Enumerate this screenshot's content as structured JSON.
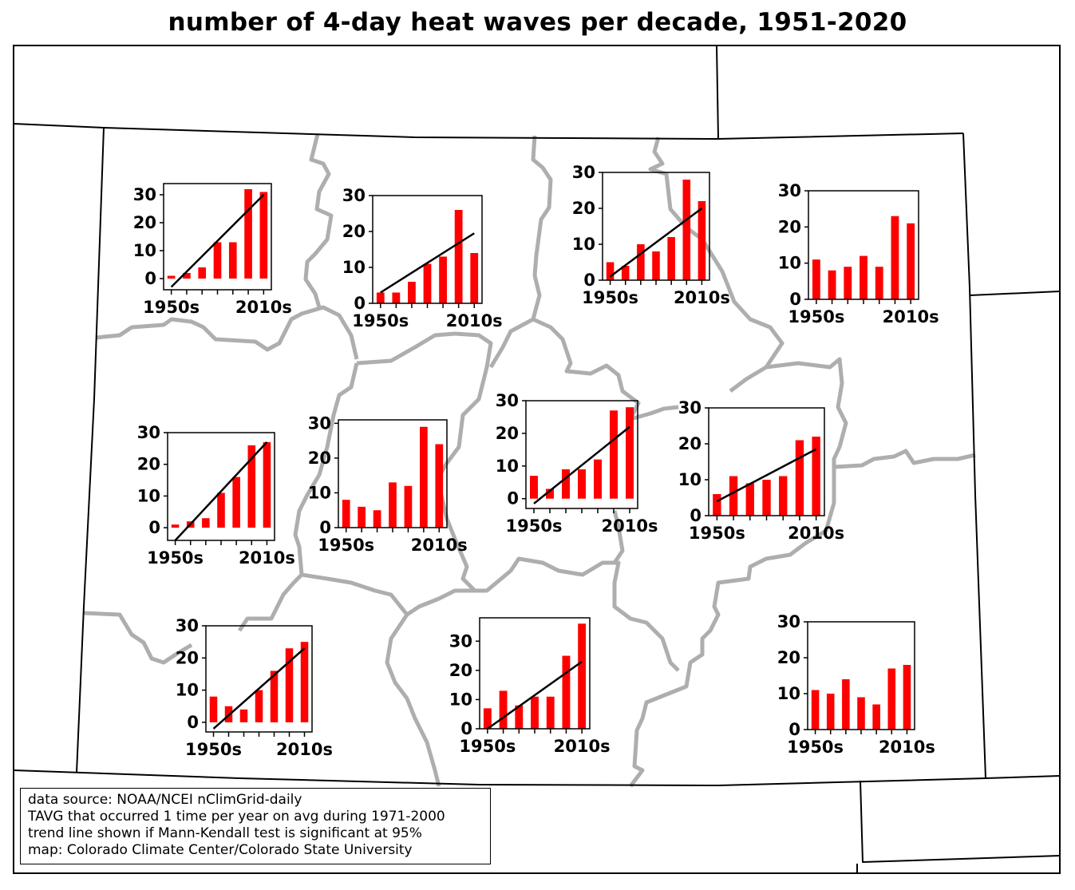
{
  "title": "number of 4-day heat waves per decade, 1951-2020",
  "legend_lines": [
    "data source: NOAA/NCEI nClimGrid-daily",
    "TAVG that occurred 1 time per year on avg during 1971-2000",
    "trend line shown if Mann-Kendall test is significant at 95%",
    "map: Colorado Climate Center/Colorado State University"
  ],
  "colors": {
    "bar": "#ff0000",
    "trend": "#000000",
    "region_border": "#aaaaaa",
    "state_border": "#000000"
  },
  "chart_data": [
    {
      "type": "bar",
      "categories": [
        "1950s",
        "1960s",
        "1970s",
        "1980s",
        "1990s",
        "2000s",
        "2010s"
      ],
      "tick_labels": [
        "1950s",
        "2010s"
      ],
      "values": [
        1,
        2,
        4,
        13,
        13,
        32,
        31
      ],
      "ylim": [
        -4,
        34
      ],
      "yticks": [
        0,
        10,
        20,
        30
      ],
      "trend": [
        -3,
        30
      ]
    },
    {
      "type": "bar",
      "categories": [
        "1950s",
        "1960s",
        "1970s",
        "1980s",
        "1990s",
        "2000s",
        "2010s"
      ],
      "tick_labels": [
        "1950s",
        "2010s"
      ],
      "values": [
        3,
        3,
        6,
        11,
        13,
        26,
        14
      ],
      "ylim": [
        0,
        30
      ],
      "yticks": [
        0,
        10,
        20,
        30
      ],
      "trend": [
        3,
        19.5
      ]
    },
    {
      "type": "bar",
      "categories": [
        "1950s",
        "1960s",
        "1970s",
        "1980s",
        "1990s",
        "2000s",
        "2010s"
      ],
      "tick_labels": [
        "1950s",
        "2010s"
      ],
      "values": [
        5,
        4,
        10,
        8,
        12,
        28,
        22
      ],
      "ylim": [
        0,
        30
      ],
      "yticks": [
        0,
        10,
        20,
        30
      ],
      "trend": [
        1,
        20
      ]
    },
    {
      "type": "bar",
      "categories": [
        "1950s",
        "1960s",
        "1970s",
        "1980s",
        "1990s",
        "2000s",
        "2010s"
      ],
      "tick_labels": [
        "1950s",
        "2010s"
      ],
      "values": [
        11,
        8,
        9,
        12,
        9,
        23,
        21
      ],
      "ylim": [
        0,
        30
      ],
      "yticks": [
        0,
        10,
        20,
        30
      ],
      "trend": null
    },
    {
      "type": "bar",
      "categories": [
        "1950s",
        "1960s",
        "1970s",
        "1980s",
        "1990s",
        "2000s",
        "2010s"
      ],
      "tick_labels": [
        "1950s",
        "2010s"
      ],
      "values": [
        1,
        2,
        3,
        11,
        16,
        26,
        27
      ],
      "ylim": [
        -4,
        30
      ],
      "yticks": [
        0,
        10,
        20,
        30
      ],
      "trend": [
        -4,
        27
      ]
    },
    {
      "type": "bar",
      "categories": [
        "1950s",
        "1960s",
        "1970s",
        "1980s",
        "1990s",
        "2000s",
        "2010s"
      ],
      "tick_labels": [
        "1950s",
        "2010s"
      ],
      "values": [
        8,
        6,
        5,
        13,
        12,
        29,
        24
      ],
      "ylim": [
        0,
        31
      ],
      "yticks": [
        0,
        10,
        20,
        30
      ],
      "trend": null
    },
    {
      "type": "bar",
      "categories": [
        "1950s",
        "1960s",
        "1970s",
        "1980s",
        "1990s",
        "2000s",
        "2010s"
      ],
      "tick_labels": [
        "1950s",
        "2010s"
      ],
      "values": [
        7,
        3,
        9,
        9,
        12,
        27,
        28
      ],
      "ylim": [
        -3,
        30
      ],
      "yticks": [
        0,
        10,
        20,
        30
      ],
      "trend": [
        -1.5,
        22
      ]
    },
    {
      "type": "bar",
      "categories": [
        "1950s",
        "1960s",
        "1970s",
        "1980s",
        "1990s",
        "2000s",
        "2010s"
      ],
      "tick_labels": [
        "1950s",
        "2010s"
      ],
      "values": [
        6,
        11,
        9,
        10,
        11,
        21,
        22
      ],
      "ylim": [
        0,
        30
      ],
      "yticks": [
        0,
        10,
        20,
        30
      ],
      "trend": [
        4,
        18.5
      ]
    },
    {
      "type": "bar",
      "categories": [
        "1950s",
        "1960s",
        "1970s",
        "1980s",
        "1990s",
        "2000s",
        "2010s"
      ],
      "tick_labels": [
        "1950s",
        "2010s"
      ],
      "values": [
        8,
        5,
        4,
        10,
        16,
        23,
        25
      ],
      "ylim": [
        -3,
        30
      ],
      "yticks": [
        0,
        10,
        20,
        30
      ],
      "trend": [
        -2,
        23
      ]
    },
    {
      "type": "bar",
      "categories": [
        "1950s",
        "1960s",
        "1970s",
        "1980s",
        "1990s",
        "2000s",
        "2010s"
      ],
      "tick_labels": [
        "1950s",
        "2010s"
      ],
      "values": [
        7,
        13,
        8,
        11,
        11,
        25,
        36
      ],
      "ylim": [
        0,
        38
      ],
      "yticks": [
        0,
        10,
        20,
        30
      ],
      "trend": [
        0,
        23
      ]
    },
    {
      "type": "bar",
      "categories": [
        "1950s",
        "1960s",
        "1970s",
        "1980s",
        "1990s",
        "2000s",
        "2010s"
      ],
      "tick_labels": [
        "1950s",
        "2010s"
      ],
      "values": [
        11,
        10,
        14,
        9,
        7,
        17,
        18
      ],
      "ylim": [
        0,
        30
      ],
      "yticks": [
        0,
        10,
        20,
        30
      ],
      "trend": null
    }
  ]
}
